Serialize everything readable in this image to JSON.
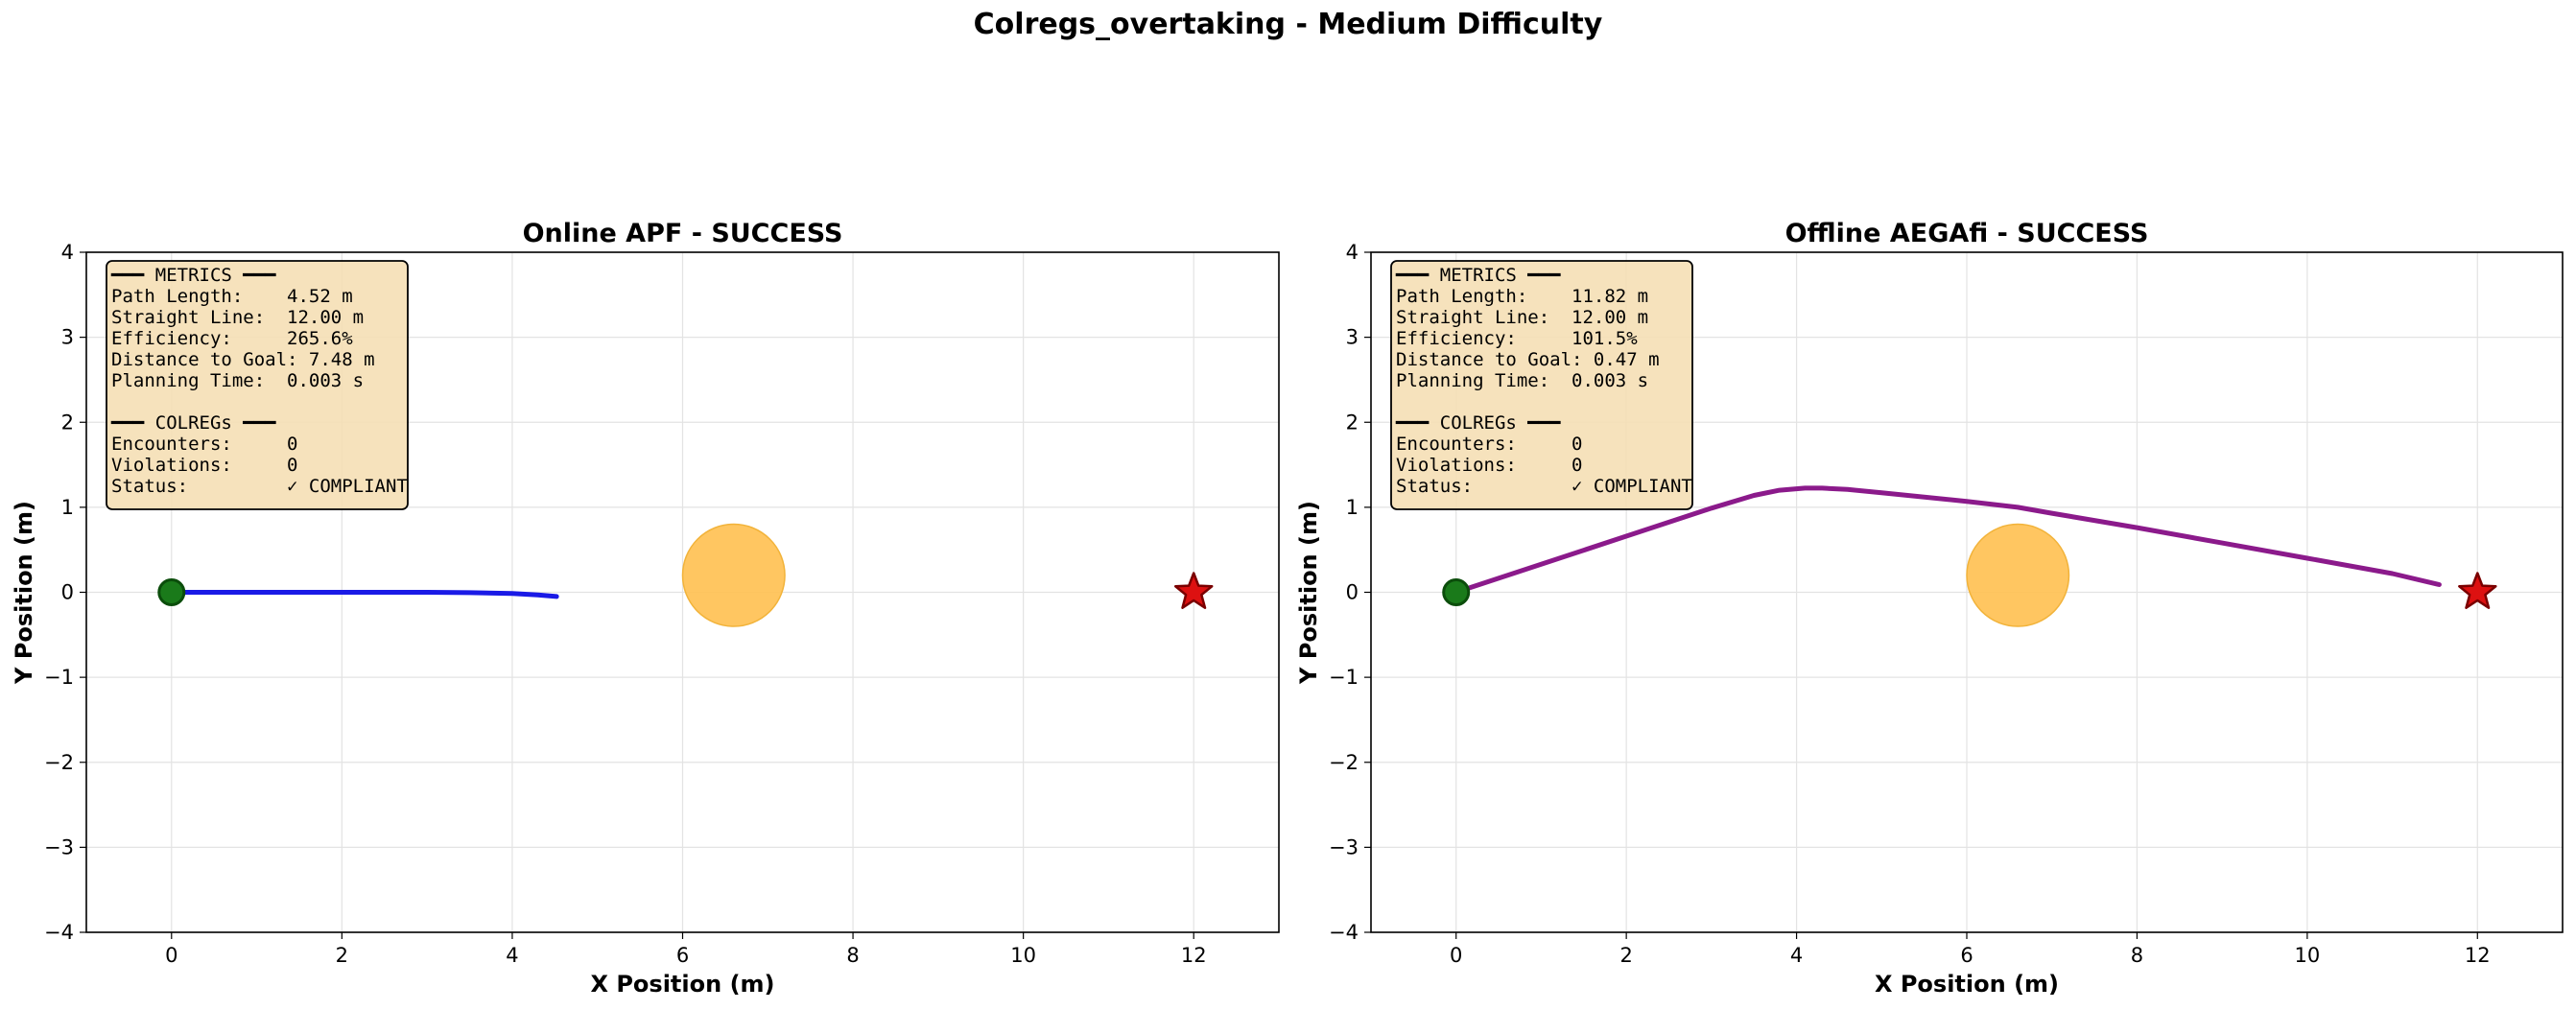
{
  "suptitle": "Colregs_overtaking - Medium Difficulty",
  "colors": {
    "apf_path": "#1a1ae6",
    "aegafi_path": "#8b1a8b",
    "start": "#1a7a1a",
    "goal": "#dd1111",
    "obstacle": "#ffc050",
    "box_fill": "#f5deb3"
  },
  "chart_data": [
    {
      "type": "line",
      "title": "Online APF - SUCCESS",
      "xlabel": "X Position (m)",
      "ylabel": "Y Position (m)",
      "xlim": [
        -1,
        13
      ],
      "ylim": [
        -4,
        4
      ],
      "xticks": [
        0,
        2,
        4,
        6,
        8,
        10,
        12
      ],
      "yticks": [
        -4,
        -3,
        -2,
        -1,
        0,
        1,
        2,
        3,
        4
      ],
      "grid": true,
      "start": [
        0,
        0
      ],
      "goal": [
        12,
        0
      ],
      "obstacle": {
        "x": 6.6,
        "y": 0.2,
        "r": 0.6
      },
      "series": [
        {
          "color": "#1a1ae6",
          "x": [
            0,
            1,
            2,
            3,
            3.5,
            4,
            4.3,
            4.52
          ],
          "y": [
            0,
            0,
            0,
            0,
            -0.005,
            -0.015,
            -0.03,
            -0.05
          ]
        }
      ],
      "metrics_lines": [
        "━━━ METRICS ━━━",
        "Path Length:    4.52 m",
        "Straight Line:  12.00 m",
        "Efficiency:     265.6%",
        "Distance to Goal: 7.48 m",
        "Planning Time:  0.003 s",
        "",
        "━━━ COLREGs ━━━",
        "Encounters:     0",
        "Violations:     0",
        "Status:         ✓ COMPLIANT"
      ]
    },
    {
      "type": "line",
      "title": "Offline AEGAfi - SUCCESS",
      "xlabel": "X Position (m)",
      "ylabel": "Y Position (m)",
      "xlim": [
        -1,
        13
      ],
      "ylim": [
        -4,
        4
      ],
      "xticks": [
        0,
        2,
        4,
        6,
        8,
        10,
        12
      ],
      "yticks": [
        -4,
        -3,
        -2,
        -1,
        0,
        1,
        2,
        3,
        4
      ],
      "grid": true,
      "start": [
        0,
        0
      ],
      "goal": [
        12,
        0
      ],
      "obstacle": {
        "x": 6.6,
        "y": 0.2,
        "r": 0.6
      },
      "series": [
        {
          "color": "#8b1a8b",
          "x": [
            0,
            1,
            2,
            3,
            3.5,
            3.8,
            4.1,
            4.3,
            4.6,
            5,
            6,
            6.6,
            7,
            8,
            9,
            10,
            11,
            11.55
          ],
          "y": [
            0,
            0.33,
            0.66,
            0.99,
            1.14,
            1.2,
            1.225,
            1.225,
            1.21,
            1.17,
            1.07,
            1.0,
            0.93,
            0.76,
            0.58,
            0.4,
            0.22,
            0.09
          ]
        }
      ],
      "metrics_lines": [
        "━━━ METRICS ━━━",
        "Path Length:    11.82 m",
        "Straight Line:  12.00 m",
        "Efficiency:     101.5%",
        "Distance to Goal: 0.47 m",
        "Planning Time:  0.003 s",
        "",
        "━━━ COLREGs ━━━",
        "Encounters:     0",
        "Violations:     0",
        "Status:         ✓ COMPLIANT"
      ]
    }
  ]
}
